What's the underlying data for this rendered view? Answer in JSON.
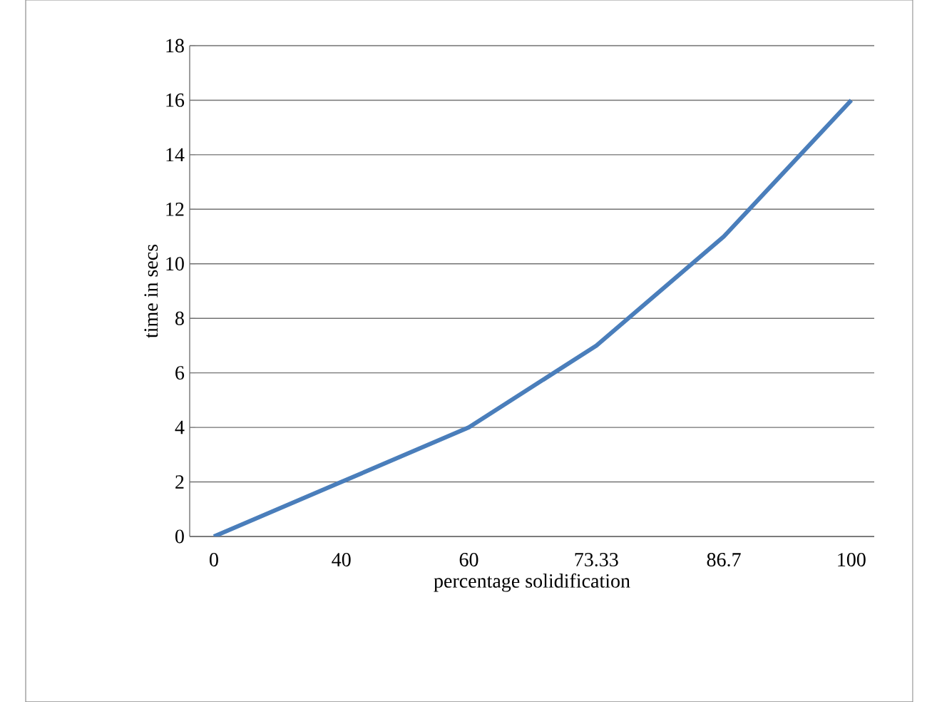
{
  "chart_data": {
    "type": "line",
    "xlabel": "percentage solidification",
    "ylabel": "time in secs",
    "categories": [
      "0",
      "40",
      "60",
      "73.33",
      "86.7",
      "100"
    ],
    "values": [
      0,
      2,
      4,
      7,
      11,
      16
    ],
    "color": "#4a7ebb",
    "ylim": [
      0,
      18
    ],
    "yticks": [
      0,
      2,
      4,
      6,
      8,
      10,
      12,
      14,
      16,
      18
    ],
    "grid": "y",
    "marker": "none",
    "line_style": "solid"
  }
}
